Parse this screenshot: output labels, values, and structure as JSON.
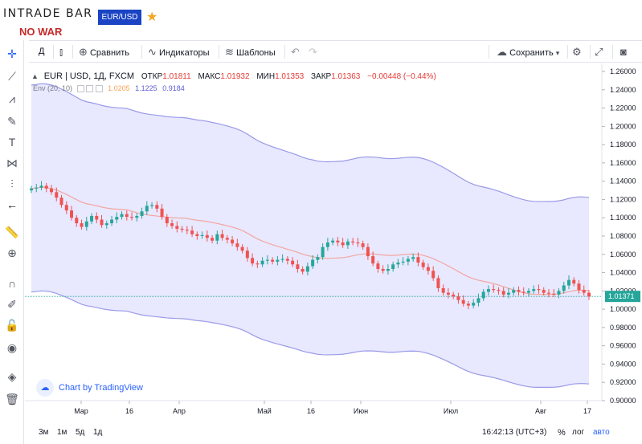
{
  "header": {
    "logo": "INTRADE BAR",
    "slogan": "NO WAR",
    "symbol_button": "EUR/USD",
    "star_icon": "star-icon"
  },
  "toolbar": {
    "interval": "Д",
    "compare": "Сравнить",
    "indicators": "Индикаторы",
    "templates": "Шаблоны",
    "save": "Сохранить"
  },
  "legend": {
    "symbol": "EUR | USD, 1Д, FXCM",
    "open_label": "ОТКР",
    "open": "1.01811",
    "high_label": "МАКС",
    "high": "1.01932",
    "low_label": "МИН",
    "low": "1.01353",
    "close_label": "ЗАКР",
    "close": "1.01363",
    "change": "−0.00448 (−0.44%)",
    "indicator_name": "Env (20, 10)",
    "ind_basis": "1.0205",
    "ind_upper": "1.1225",
    "ind_lower": "0.9184"
  },
  "watermark": "Chart by TradingView",
  "bottom": {
    "ranges": [
      "3м",
      "1м",
      "5д",
      "1д"
    ],
    "time": "16:42:13 (UTC+3)",
    "percent": "%",
    "log": "лог",
    "auto": "авто"
  },
  "colors": {
    "up": "#26a69a",
    "down": "#ef5350",
    "envelope_fill": "#e8e8ff",
    "envelope_line": "#9a9ae8",
    "basis_line": "#f2a7a0",
    "price_label": "#26a69a"
  },
  "chart_data": {
    "type": "candlestick",
    "ylim": [
      0.9,
      1.26
    ],
    "yticks": [
      "1.26000",
      "1.24000",
      "1.22000",
      "1.20000",
      "1.18000",
      "1.16000",
      "1.14000",
      "1.12000",
      "1.10000",
      "1.08000",
      "1.06000",
      "1.04000",
      "1.02000",
      "1.00000",
      "0.98000",
      "0.96000",
      "0.94000",
      "0.92000",
      "0.90000"
    ],
    "xticks": [
      "Мар",
      "16",
      "Апр",
      "Май",
      "16",
      "Июн",
      "Июл",
      "Авг",
      "17"
    ],
    "last_price_label": "1.01371",
    "close_series": [
      1.132,
      1.133,
      1.135,
      1.132,
      1.128,
      1.122,
      1.114,
      1.108,
      1.1,
      1.094,
      1.09,
      1.096,
      1.102,
      1.098,
      1.092,
      1.094,
      1.098,
      1.101,
      1.104,
      1.101,
      1.1,
      1.102,
      1.107,
      1.113,
      1.114,
      1.11,
      1.101,
      1.094,
      1.091,
      1.088,
      1.087,
      1.086,
      1.082,
      1.08,
      1.081,
      1.078,
      1.075,
      1.082,
      1.078,
      1.076,
      1.072,
      1.068,
      1.064,
      1.056,
      1.05,
      1.049,
      1.053,
      1.054,
      1.052,
      1.054,
      1.055,
      1.053,
      1.049,
      1.044,
      1.041,
      1.047,
      1.054,
      1.057,
      1.068,
      1.073,
      1.075,
      1.073,
      1.07,
      1.074,
      1.073,
      1.072,
      1.068,
      1.058,
      1.05,
      1.044,
      1.042,
      1.044,
      1.049,
      1.051,
      1.052,
      1.055,
      1.057,
      1.051,
      1.046,
      1.042,
      1.034,
      1.023,
      1.018,
      1.016,
      1.014,
      1.01,
      1.006,
      1.004,
      1.007,
      1.012,
      1.019,
      1.022,
      1.021,
      1.02,
      1.016,
      1.018,
      1.021,
      1.019,
      1.018,
      1.02,
      1.022,
      1.021,
      1.018,
      1.017,
      1.016,
      1.02,
      1.026,
      1.032,
      1.028,
      1.021,
      1.018,
      1.014
    ]
  }
}
